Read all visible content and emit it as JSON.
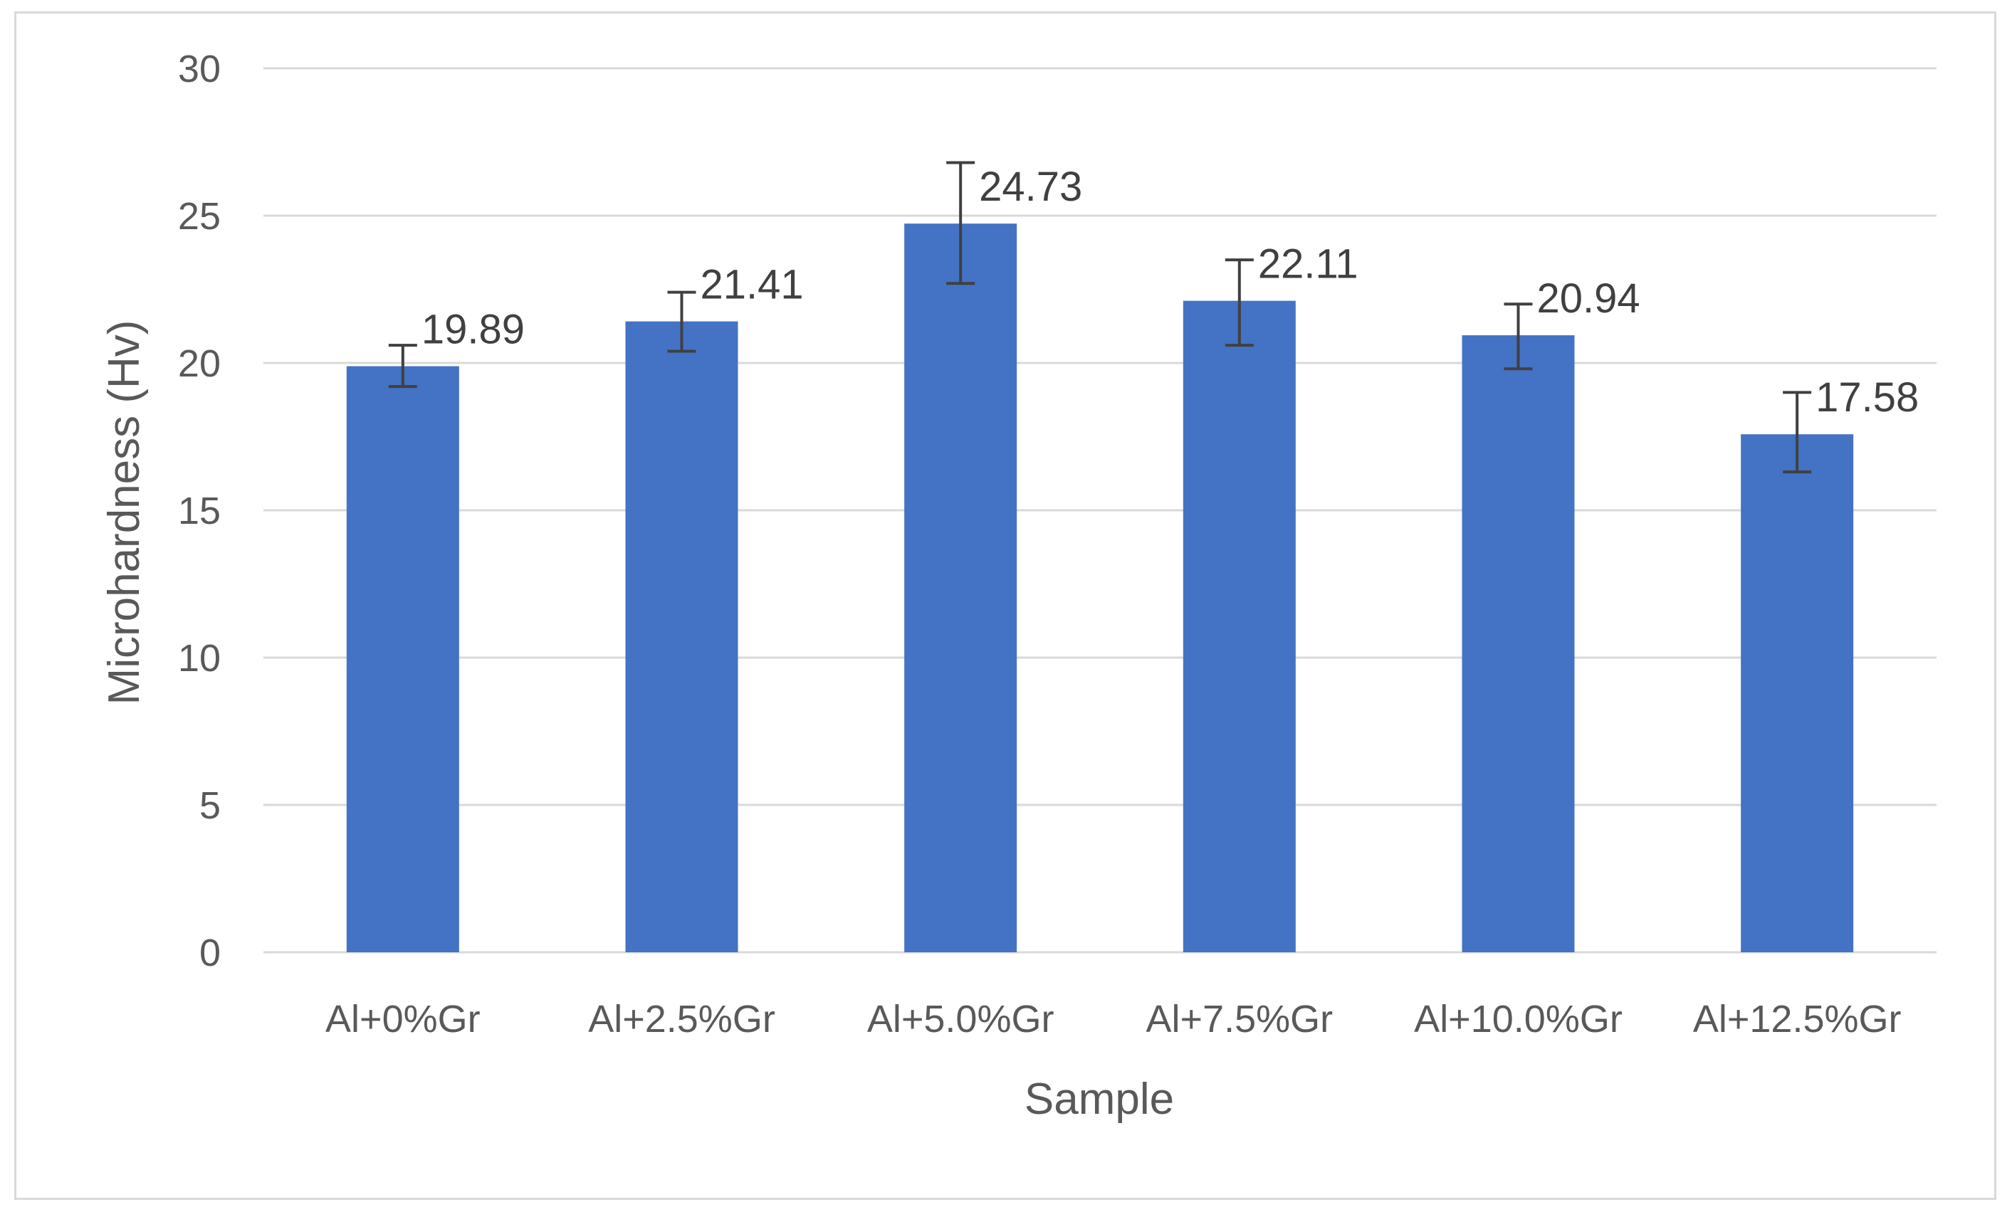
{
  "chart_data": {
    "type": "bar",
    "categories": [
      "Al+0%Gr",
      "Al+2.5%Gr",
      "Al+5.0%Gr",
      "Al+7.5%Gr",
      "Al+10.0%Gr",
      "Al+12.5%Gr"
    ],
    "values": [
      19.89,
      21.41,
      24.73,
      22.11,
      20.94,
      17.58
    ],
    "value_labels": [
      "19.89",
      "21.41",
      "24.73",
      "22.11",
      "20.94",
      "17.58"
    ],
    "error_low": [
      19.2,
      20.4,
      22.7,
      20.6,
      19.8,
      16.3
    ],
    "error_high": [
      20.6,
      22.4,
      26.8,
      23.5,
      22.0,
      19.0
    ],
    "title": "",
    "xlabel": "Sample",
    "ylabel": "Microhardness (Hv)",
    "ylim": [
      0,
      30
    ],
    "yticks": [
      0,
      5,
      10,
      15,
      20,
      25,
      30
    ],
    "grid": true,
    "legend": "none",
    "bar_color": "#4472c4",
    "error_bar_color": "#404040",
    "grid_color": "#d9d9d9"
  }
}
